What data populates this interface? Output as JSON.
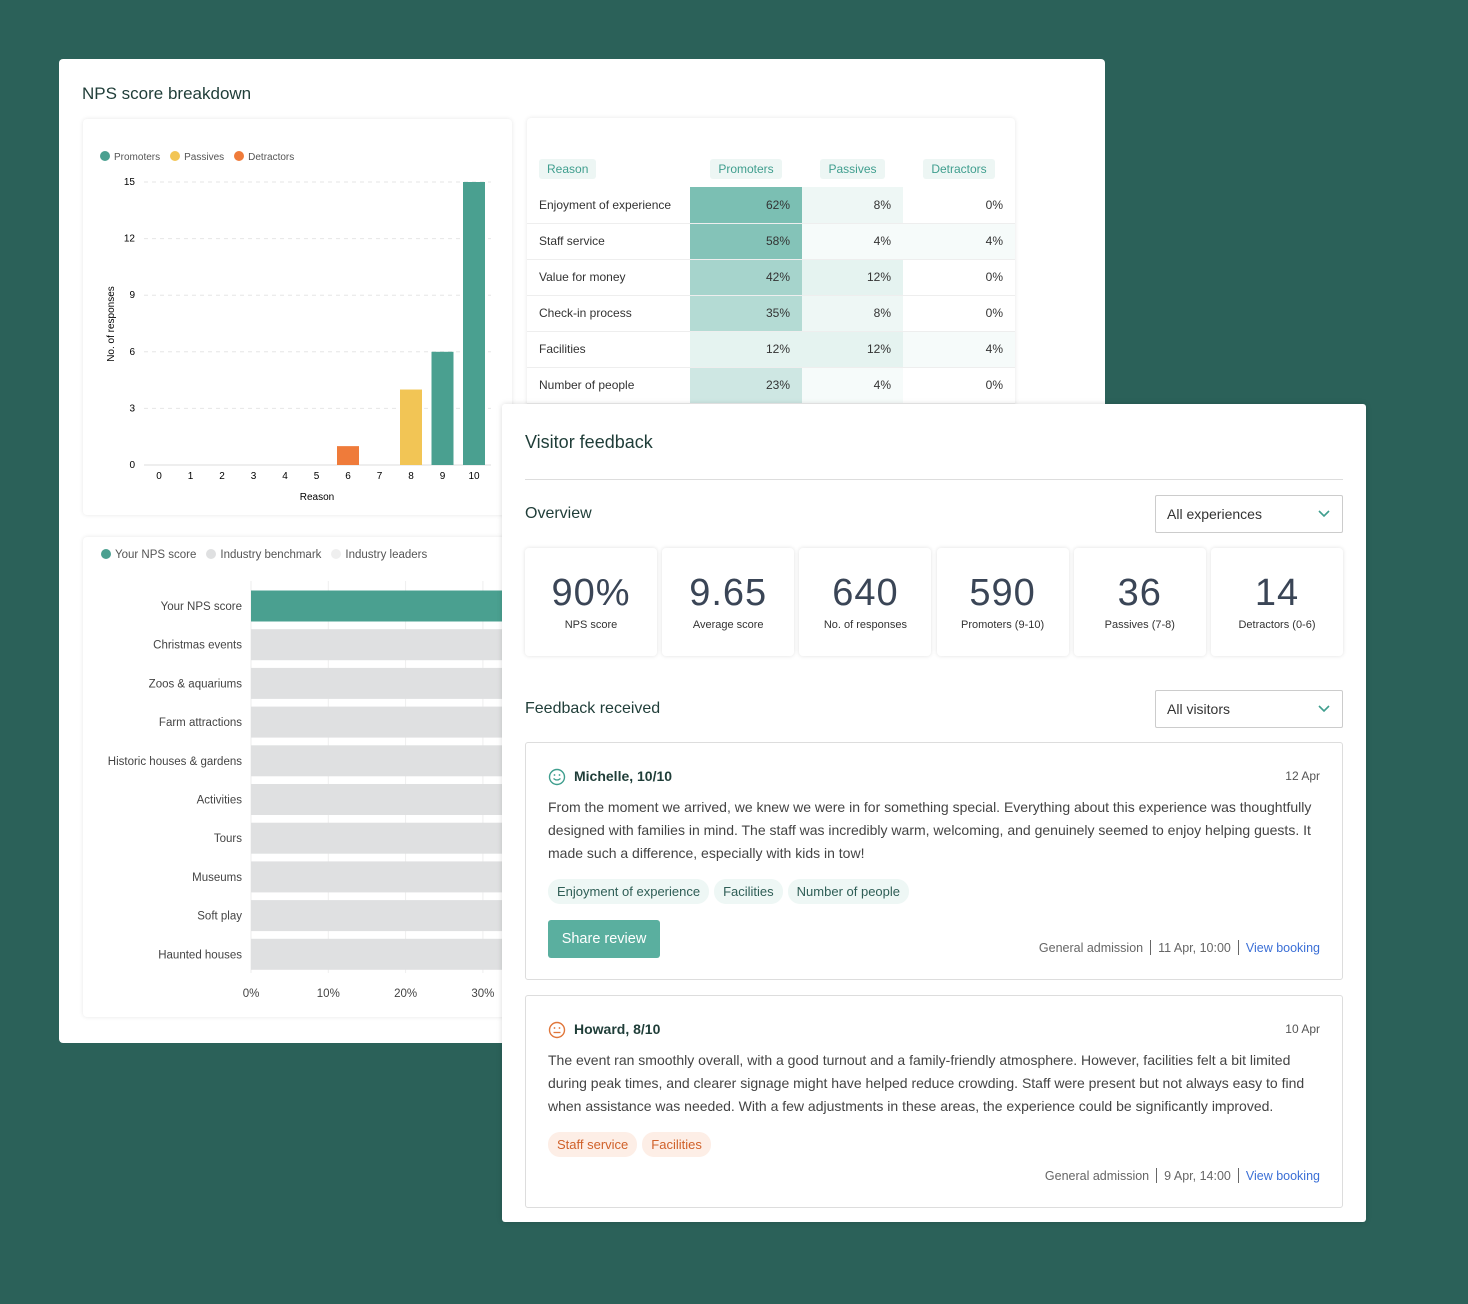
{
  "nps_breakdown": {
    "title": "NPS score breakdown"
  },
  "colors": {
    "promoters": "#4aa090",
    "passives": "#f2c555",
    "detractors": "#ef7b3a",
    "background": "#2b6159",
    "benchmark": "#dfe0e1",
    "leaders": "#efefef"
  },
  "chart_data": [
    {
      "type": "bar",
      "xlabel": "Reason",
      "ylabel": "No. of responses",
      "ylim": [
        0,
        15
      ],
      "yticks": [
        0,
        3,
        6,
        9,
        12,
        15
      ],
      "categories": [
        "0",
        "1",
        "2",
        "3",
        "4",
        "5",
        "6",
        "7",
        "8",
        "9",
        "10"
      ],
      "legend": [
        "Promoters",
        "Passives",
        "Detractors"
      ],
      "legend_position": "top-left",
      "grid": true,
      "series": [
        {
          "name": "Promoters",
          "values": [
            0,
            0,
            0,
            0,
            0,
            0,
            0,
            0,
            0,
            6,
            15
          ]
        },
        {
          "name": "Passives",
          "values": [
            0,
            0,
            0,
            0,
            0,
            0,
            0,
            0,
            4,
            0,
            0
          ]
        },
        {
          "name": "Detractors",
          "values": [
            0,
            0,
            0,
            0,
            0,
            0,
            1,
            0,
            0,
            0,
            0
          ]
        }
      ]
    },
    {
      "type": "bar",
      "orientation": "horizontal",
      "legend": [
        "Your NPS score",
        "Industry benchmark",
        "Industry leaders"
      ],
      "legend_position": "top-left",
      "grid": true,
      "xticks": [
        "0%",
        "10%",
        "20%",
        "30%"
      ],
      "categories": [
        "Your NPS score",
        "Christmas events",
        "Zoos & aquariums",
        "Farm attractions",
        "Historic houses & gardens",
        "Activities",
        "Tours",
        "Museums",
        "Soft play",
        "Haunted houses"
      ],
      "series_of_category": [
        "Your NPS score",
        "Industry benchmark",
        "Industry benchmark",
        "Industry benchmark",
        "Industry benchmark",
        "Industry benchmark",
        "Industry benchmark",
        "Industry benchmark",
        "Industry benchmark",
        "Industry benchmark"
      ],
      "values_note": "bars extend beyond visible area"
    },
    {
      "type": "table",
      "columns": [
        "Reason",
        "Promoters",
        "Passives",
        "Detractors"
      ],
      "rows": [
        [
          "Enjoyment of experience",
          "62%",
          "8%",
          "0%"
        ],
        [
          "Staff service",
          "58%",
          "4%",
          "4%"
        ],
        [
          "Value for money",
          "42%",
          "12%",
          "0%"
        ],
        [
          "Check-in process",
          "35%",
          "8%",
          "0%"
        ],
        [
          "Facilities",
          "12%",
          "12%",
          "4%"
        ],
        [
          "Number of people",
          "23%",
          "4%",
          "0%"
        ]
      ]
    }
  ],
  "feedback": {
    "title": "Visitor feedback",
    "overview_title": "Overview",
    "experience_select": "All experiences",
    "kpis": [
      {
        "value": "90%",
        "label": "NPS score"
      },
      {
        "value": "9.65",
        "label": "Average score"
      },
      {
        "value": "640",
        "label": "No. of responses"
      },
      {
        "value": "590",
        "label": "Promoters (9-10)"
      },
      {
        "value": "36",
        "label": "Passives (7-8)"
      },
      {
        "value": "14",
        "label": "Detractors (0-6)"
      }
    ],
    "received_title": "Feedback received",
    "visitor_select": "All visitors",
    "items": [
      {
        "name": "Michelle, 10/10",
        "date": "12 Apr",
        "sentiment": "happy",
        "text": "From the moment we arrived, we knew we were in for something special. Everything about this experience was thoughtfully designed with families in mind. The staff was incredibly warm, welcoming, and genuinely seemed to enjoy helping guests. It made such a difference, especially with kids in tow!",
        "tags": [
          "Enjoyment of experience",
          "Facilities",
          "Number of people"
        ],
        "button": "Share review",
        "ticket": "General admission",
        "slot": "11 Apr, 10:00",
        "link": "View booking"
      },
      {
        "name": "Howard, 8/10",
        "date": "10 Apr",
        "sentiment": "neutral",
        "text": "The event ran smoothly overall, with a good turnout and a family-friendly atmosphere. However, facilities felt a bit limited during peak times, and clearer signage might have helped reduce crowding. Staff were present but not always easy to find when assistance was needed. With a few adjustments in these areas, the experience could be significantly improved.",
        "tags": [
          "Staff service",
          "Facilities"
        ],
        "ticket": "General admission",
        "slot": "9 Apr, 14:00",
        "link": "View booking"
      }
    ]
  }
}
